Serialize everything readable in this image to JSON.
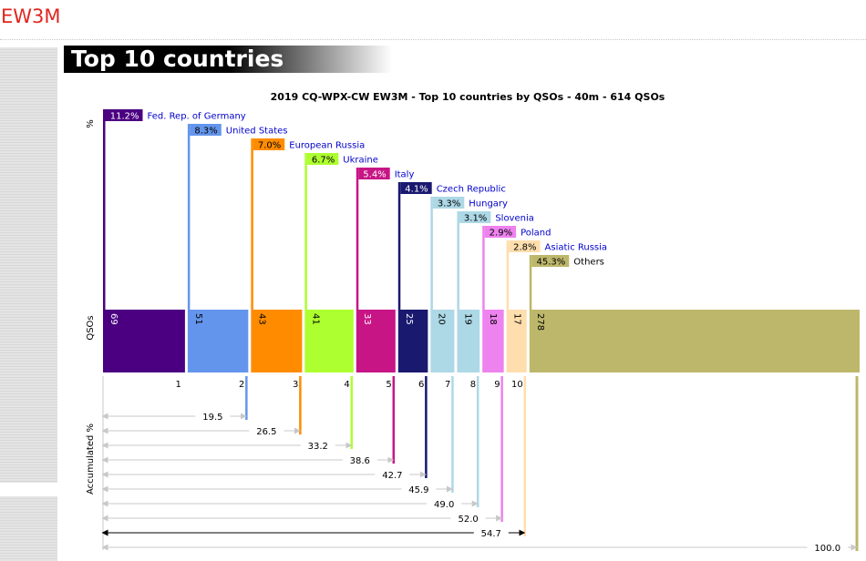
{
  "header": {
    "logo": "EW3M",
    "section_title": "Top 10 countries"
  },
  "chart_data": {
    "type": "bar",
    "title": "2019 CQ-WPX-CW EW3M - Top 10 countries by QSOs - 40m - 614 QSOs",
    "ylabel_percent": "%",
    "ylabel_qsos": "QSOs",
    "ylabel_accum": "Accumulated %",
    "total_qsos": 614,
    "rows": [
      {
        "rank": "1",
        "country": "Fed. Rep. of Germany",
        "qsos": 69,
        "percent": "11.2%",
        "accum": "11.2",
        "color": "#4b0082"
      },
      {
        "rank": "2",
        "country": "United States",
        "qsos": 51,
        "percent": "8.3%",
        "accum": "19.5",
        "color": "#6495ed"
      },
      {
        "rank": "3",
        "country": "European Russia",
        "qsos": 43,
        "percent": "7.0%",
        "accum": "26.5",
        "color": "#ff8c00"
      },
      {
        "rank": "4",
        "country": "Ukraine",
        "qsos": 41,
        "percent": "6.7%",
        "accum": "33.2",
        "color": "#adff2f"
      },
      {
        "rank": "5",
        "country": "Italy",
        "qsos": 33,
        "percent": "5.4%",
        "accum": "38.6",
        "color": "#c71585"
      },
      {
        "rank": "6",
        "country": "Czech Republic",
        "qsos": 25,
        "percent": "4.1%",
        "accum": "42.7",
        "color": "#191970"
      },
      {
        "rank": "7",
        "country": "Hungary",
        "qsos": 20,
        "percent": "3.3%",
        "accum": "45.9",
        "color": "#add8e6"
      },
      {
        "rank": "8",
        "country": "Slovenia",
        "qsos": 19,
        "percent": "3.1%",
        "accum": "49.0",
        "color": "#add8e6"
      },
      {
        "rank": "9",
        "country": "Poland",
        "qsos": 18,
        "percent": "2.9%",
        "accum": "52.0",
        "color": "#ee82ee"
      },
      {
        "rank": "10",
        "country": "Asiatic Russia",
        "qsos": 17,
        "percent": "2.8%",
        "accum": "54.7",
        "color": "#ffdead"
      },
      {
        "rank": "",
        "country": "Others",
        "qsos": 278,
        "percent": "45.3%",
        "accum": "100.0",
        "color": "#bdb76b"
      }
    ],
    "label_colors": {
      "dark_label_text": "#ffffff",
      "light_label_text": "#000000",
      "country_text": "#0000cc"
    }
  }
}
